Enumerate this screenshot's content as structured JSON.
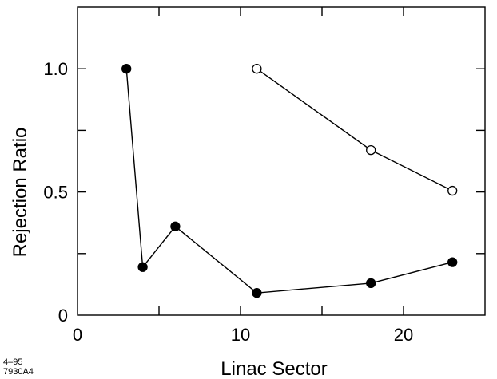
{
  "figure_id_line1": "4–95",
  "figure_id_line2": "7930A4",
  "chart_data": {
    "type": "line",
    "xlabel": "Linac Sector",
    "ylabel": "Rejection Ratio",
    "xlim": [
      0,
      25
    ],
    "ylim": [
      0,
      1.25
    ],
    "x_ticks": [
      0,
      5,
      10,
      15,
      20,
      25
    ],
    "x_tick_labels": [
      "0",
      "",
      "10",
      "",
      "20",
      ""
    ],
    "y_ticks": [
      0,
      0.25,
      0.5,
      0.75,
      1.0,
      1.25
    ],
    "y_tick_labels": [
      "0",
      "",
      "0.5",
      "",
      "1.0",
      ""
    ],
    "grid": false,
    "series": [
      {
        "marker": "filled-circle",
        "color": "#000000",
        "x": [
          3,
          4,
          6,
          11,
          18,
          23
        ],
        "y": [
          1.0,
          0.195,
          0.36,
          0.09,
          0.13,
          0.215
        ]
      },
      {
        "marker": "open-circle",
        "color": "#000000",
        "x": [
          11,
          18,
          23
        ],
        "y": [
          1.0,
          0.67,
          0.505
        ]
      }
    ]
  }
}
